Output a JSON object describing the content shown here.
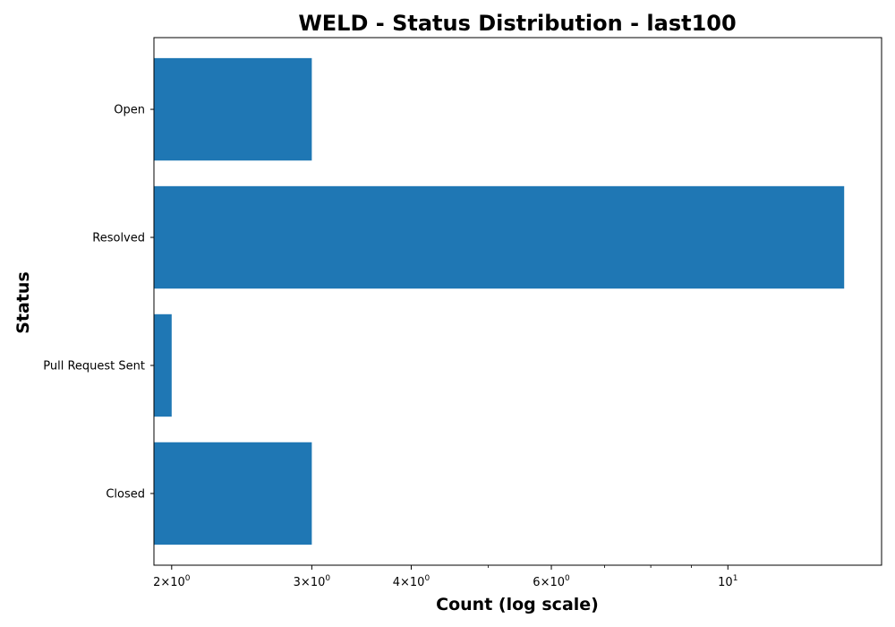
{
  "chart_data": {
    "type": "bar",
    "orientation": "horizontal",
    "title": "WELD - Status Distribution - last100",
    "xlabel": "Count (log scale)",
    "ylabel": "Status",
    "xscale": "log",
    "xlim": [
      1.9,
      15.6
    ],
    "categories": [
      "Open",
      "Resolved",
      "Pull Request Sent",
      "Closed"
    ],
    "values": [
      3,
      14,
      2,
      3
    ],
    "major_x_ticks": [
      {
        "value": 2,
        "base": "2",
        "exp": "0"
      },
      {
        "value": 3,
        "base": "3",
        "exp": "0"
      },
      {
        "value": 4,
        "base": "4",
        "exp": "0"
      },
      {
        "value": 6,
        "base": "6",
        "exp": "0"
      },
      {
        "value": 10,
        "base": "10",
        "exp": "1"
      }
    ],
    "minor_x_ticks": [
      5,
      7,
      8,
      9
    ],
    "bar_color": "#1f77b4",
    "grid": false,
    "legend": "none"
  }
}
